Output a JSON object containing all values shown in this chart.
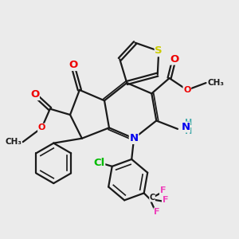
{
  "background_color": "#ebebeb",
  "bond_color": "#1a1a1a",
  "bond_width": 1.6,
  "atom_colors": {
    "S": "#cccc00",
    "N": "#0000ee",
    "O": "#ee0000",
    "Cl": "#00bb00",
    "F": "#ee44bb",
    "C": "#1a1a1a",
    "H": "#44aaaa"
  },
  "fs_large": 9.5,
  "fs_small": 8.0,
  "fs_methyl": 7.5
}
